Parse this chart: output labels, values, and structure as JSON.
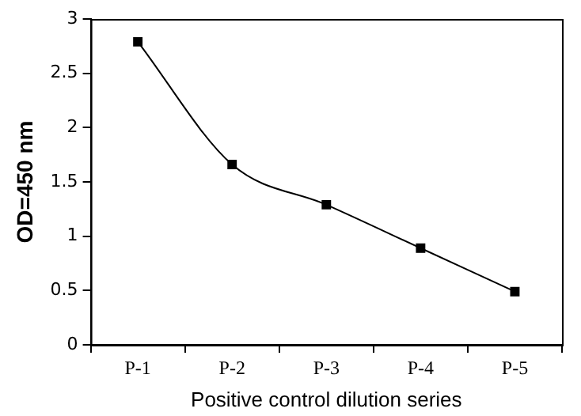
{
  "chart_data": {
    "type": "line",
    "xlabel": "Positive control dilution series",
    "ylabel": "OD=450 nm",
    "categories": [
      "P-1",
      "P-2",
      "P-3",
      "P-4",
      "P-5"
    ],
    "series": [
      {
        "color": "#000000",
        "values": [
          2.79,
          1.66,
          1.29,
          0.89,
          0.49
        ]
      }
    ],
    "ylim": [
      0,
      3
    ],
    "yticks": [
      0,
      0.5,
      1,
      1.5,
      2,
      2.5,
      3
    ],
    "grid": false,
    "legend": false,
    "marker": "square",
    "line_style": "solid"
  }
}
